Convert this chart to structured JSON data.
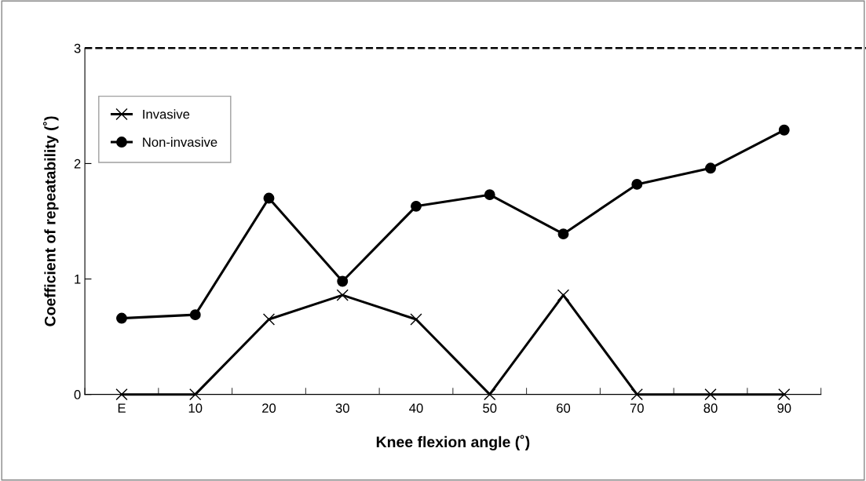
{
  "chart_data": {
    "type": "line",
    "xlabel": "Knee flexion angle (˚)",
    "ylabel": "Coefficient of repeatability (˚)",
    "categories": [
      "E",
      "10",
      "20",
      "30",
      "40",
      "50",
      "60",
      "70",
      "80",
      "90"
    ],
    "series": [
      {
        "name": "Invasive",
        "color": "#000000",
        "marker": "cross",
        "values": [
          0,
          0,
          0.65,
          0.86,
          0.65,
          0,
          0.86,
          0,
          0,
          0
        ]
      },
      {
        "name": "Non-invasive",
        "color": "#000000",
        "marker": "circle",
        "values": [
          0.66,
          0.69,
          1.7,
          0.98,
          1.63,
          1.73,
          1.39,
          1.82,
          1.96,
          2.29
        ]
      }
    ],
    "ylim": [
      0,
      3
    ],
    "yticks": [
      0,
      1,
      2,
      3
    ],
    "grid": false,
    "legend": "top left",
    "line_style": "solid",
    "ref_lines": [
      {
        "axis": "y",
        "value": 3,
        "color": "#000000",
        "line_style": "dashed"
      }
    ]
  }
}
